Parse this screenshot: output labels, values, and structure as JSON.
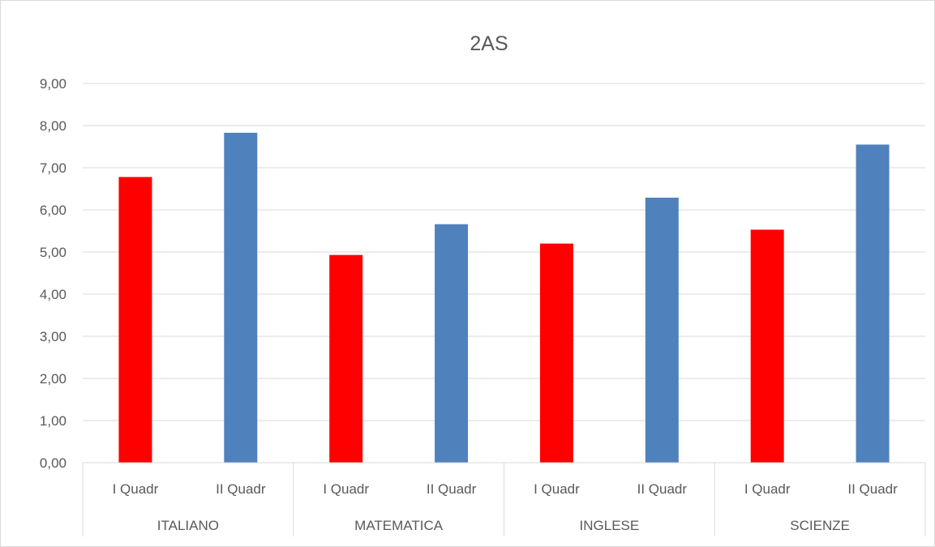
{
  "chart_data": {
    "type": "bar",
    "title": "2AS",
    "xlabel": "",
    "ylabel": "",
    "ylim": [
      0,
      9
    ],
    "ytick_step": 1,
    "ytick_labels": [
      "0,00",
      "1,00",
      "2,00",
      "3,00",
      "4,00",
      "5,00",
      "6,00",
      "7,00",
      "8,00",
      "9,00"
    ],
    "grid": true,
    "legend": "none",
    "groups": [
      "ITALIANO",
      "MATEMATICA",
      "INGLESE",
      "SCIENZE"
    ],
    "subcategories": [
      "I Quadr",
      "II Quadr"
    ],
    "subcategory_colors": [
      "#ff0000",
      "#4f81bd"
    ],
    "values": [
      [
        6.78,
        7.83
      ],
      [
        4.93,
        5.66
      ],
      [
        5.2,
        6.29
      ],
      [
        5.53,
        7.55
      ]
    ]
  }
}
